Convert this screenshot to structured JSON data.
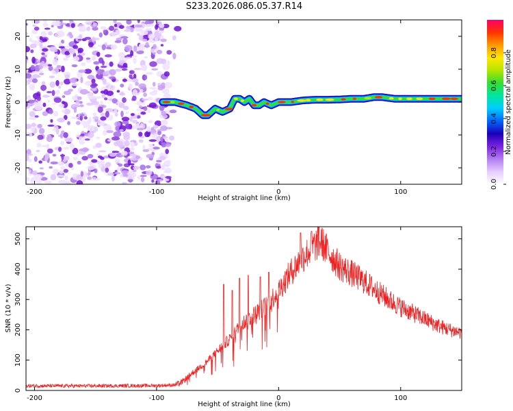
{
  "title": "S233.2026.086.05.37.R14",
  "chart_data": [
    {
      "type": "heatmap",
      "name": "spectrogram",
      "xlabel": "Height of straight line (km)",
      "ylabel": "Frequency (Hz)",
      "xlim": [
        -207,
        150
      ],
      "ylim": [
        -25,
        25
      ],
      "xticks": [
        -200,
        -100,
        0,
        100
      ],
      "yticks": [
        -20,
        -10,
        0,
        10,
        20
      ],
      "noise_region_x": [
        -207,
        -90
      ],
      "signal_start_x": -95,
      "ridge_frequency": {
        "x": [
          -95,
          -85,
          -75,
          -68,
          -62,
          -58,
          -52,
          -46,
          -40,
          -36,
          -32,
          -28,
          -24,
          -20,
          -16,
          -12,
          -6,
          0,
          10,
          20,
          30,
          40,
          50,
          60,
          70,
          78,
          85,
          95,
          110,
          125,
          140,
          150
        ],
        "freq": [
          0,
          0,
          -1,
          -2,
          -4,
          -4,
          -2,
          -3,
          -2,
          1,
          1,
          0,
          1,
          -1,
          -1,
          0,
          -1,
          0,
          0,
          0.5,
          0.7,
          0.7,
          0.8,
          1,
          1,
          1.5,
          1.5,
          1,
          1,
          1,
          1,
          1
        ]
      },
      "colorbar": {
        "label": "Normalized spectral amplitude",
        "range": [
          0,
          1
        ],
        "ticks": [
          "0.0",
          "0.2",
          "0.4",
          "0.6",
          "0.8"
        ],
        "colors": [
          "#ffffff",
          "#e6ccff",
          "#b27cf2",
          "#7b22e0",
          "#1a00b8",
          "#0066ff",
          "#00ccff",
          "#00e6a0",
          "#33dd33",
          "#b4e600",
          "#ffe600",
          "#ff9900",
          "#ff3300",
          "#ff0066"
        ]
      }
    },
    {
      "type": "line",
      "name": "snr",
      "xlabel": "Height of straight line (km)",
      "ylabel": "SNR (10 * v/v)",
      "xlim": [
        -207,
        150
      ],
      "ylim": [
        0,
        540
      ],
      "xticks": [
        -200,
        -100,
        0,
        100
      ],
      "yticks": [
        0,
        100,
        200,
        300,
        400,
        500
      ],
      "color": "#ee2222",
      "envelope": {
        "x": [
          -207,
          -150,
          -100,
          -85,
          -80,
          -70,
          -60,
          -50,
          -40,
          -30,
          -20,
          -10,
          0,
          10,
          20,
          30,
          35,
          40,
          50,
          60,
          70,
          80,
          90,
          100,
          110,
          120,
          130,
          140,
          150
        ],
        "y": [
          15,
          15,
          16,
          18,
          25,
          60,
          90,
          130,
          170,
          220,
          250,
          280,
          330,
          390,
          440,
          480,
          490,
          460,
          410,
          385,
          360,
          330,
          300,
          275,
          255,
          235,
          215,
          200,
          190
        ]
      },
      "spikes": [
        {
          "x": -45,
          "y": 350
        },
        {
          "x": -38,
          "y": 330
        },
        {
          "x": -32,
          "y": 370
        },
        {
          "x": -25,
          "y": 380
        },
        {
          "x": -15,
          "y": 375
        },
        {
          "x": -8,
          "y": 390
        },
        {
          "x": 18,
          "y": 520
        },
        {
          "x": 27,
          "y": 525
        },
        {
          "x": 33,
          "y": 540
        }
      ]
    }
  ]
}
